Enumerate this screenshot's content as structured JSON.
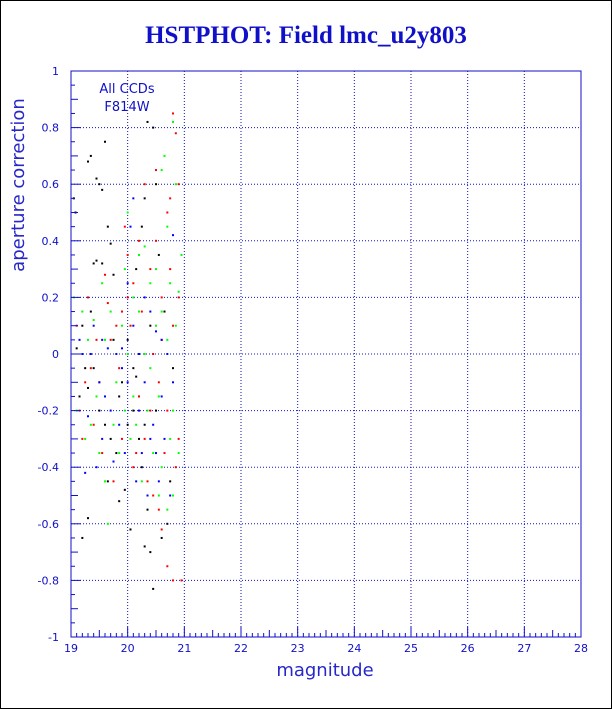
{
  "chart_data": {
    "type": "scatter",
    "title": "HSTPHOT: Field lmc_u2y803",
    "xlabel": "magnitude",
    "ylabel": "aperture correction",
    "xlim": [
      19,
      28
    ],
    "ylim": [
      -1,
      1
    ],
    "xticks": [
      19,
      20,
      21,
      22,
      23,
      24,
      25,
      26,
      27,
      28
    ],
    "yticks": [
      -1,
      -0.8,
      -0.6,
      -0.4,
      -0.2,
      0,
      0.2,
      0.4,
      0.6,
      0.8,
      1
    ],
    "ytick_labels": [
      "-1",
      "-0.8",
      "-0.6",
      "-0.4",
      "-0.2",
      "0",
      "0.2",
      "0.4",
      "0.6",
      "0.8",
      "1"
    ],
    "grid": true,
    "annotations": [
      "All CCDs",
      "F814W"
    ],
    "colors": {
      "axes": "#1010c8",
      "grid": "#1010c8"
    },
    "series": [
      {
        "color": "#000000",
        "points": [
          [
            19.05,
            0.55
          ],
          [
            19.08,
            0.5
          ],
          [
            19.3,
            0.68
          ],
          [
            19.35,
            0.7
          ],
          [
            19.45,
            0.62
          ],
          [
            19.5,
            0.6
          ],
          [
            19.55,
            0.58
          ],
          [
            19.6,
            0.75
          ],
          [
            19.65,
            0.45
          ],
          [
            19.4,
            0.32
          ],
          [
            19.45,
            0.33
          ],
          [
            19.55,
            0.32
          ],
          [
            19.7,
            0.39
          ],
          [
            19.75,
            0.28
          ],
          [
            19.35,
            0.15
          ],
          [
            19.2,
            0.1
          ],
          [
            19.1,
            0.02
          ],
          [
            19.25,
            -0.05
          ],
          [
            19.3,
            -0.12
          ],
          [
            19.5,
            -0.2
          ],
          [
            19.6,
            -0.25
          ],
          [
            19.7,
            -0.3
          ],
          [
            19.8,
            -0.35
          ],
          [
            19.9,
            -0.1
          ],
          [
            20.0,
            0.05
          ],
          [
            20.1,
            -0.05
          ],
          [
            20.2,
            -0.15
          ],
          [
            20.3,
            -0.25
          ],
          [
            20.25,
            -0.4
          ],
          [
            20.35,
            -0.55
          ],
          [
            20.4,
            -0.7
          ],
          [
            20.3,
            -0.68
          ],
          [
            20.45,
            -0.83
          ],
          [
            20.6,
            -0.65
          ],
          [
            20.7,
            -0.6
          ],
          [
            20.15,
            0.3
          ],
          [
            20.25,
            0.45
          ],
          [
            20.3,
            0.55
          ],
          [
            20.35,
            0.82
          ],
          [
            20.45,
            0.8
          ],
          [
            20.5,
            0.6
          ],
          [
            20.55,
            0.35
          ],
          [
            20.65,
            0.15
          ],
          [
            20.75,
            -0.45
          ],
          [
            20.8,
            -0.05
          ],
          [
            19.15,
            -0.15
          ],
          [
            19.4,
            -0.05
          ],
          [
            19.65,
            -0.45
          ],
          [
            19.85,
            -0.52
          ],
          [
            19.95,
            -0.48
          ],
          [
            20.05,
            -0.62
          ],
          [
            19.2,
            -0.65
          ],
          [
            19.3,
            -0.58
          ],
          [
            20.1,
            -0.2
          ],
          [
            20.2,
            -0.3
          ],
          [
            19.75,
            0.05
          ],
          [
            19.85,
            -0.15
          ],
          [
            20.0,
            -0.25
          ],
          [
            20.15,
            -0.08
          ],
          [
            20.4,
            0.1
          ],
          [
            20.5,
            -0.2
          ]
        ]
      },
      {
        "color": "#ff0000",
        "points": [
          [
            19.1,
            0.1
          ],
          [
            19.3,
            0.2
          ],
          [
            19.5,
            -0.1
          ],
          [
            19.6,
            0.28
          ],
          [
            19.7,
            0.05
          ],
          [
            19.8,
            0.1
          ],
          [
            19.9,
            0.15
          ],
          [
            20.0,
            0.35
          ],
          [
            20.1,
            0.25
          ],
          [
            20.2,
            -0.15
          ],
          [
            20.3,
            -0.3
          ],
          [
            20.4,
            -0.2
          ],
          [
            20.5,
            0.4
          ],
          [
            20.6,
            0.2
          ],
          [
            20.7,
            0.5
          ],
          [
            20.75,
            0.55
          ],
          [
            20.8,
            0.85
          ],
          [
            20.85,
            0.78
          ],
          [
            20.9,
            0.6
          ],
          [
            20.35,
            -0.45
          ],
          [
            20.45,
            -0.5
          ],
          [
            20.55,
            -0.55
          ],
          [
            20.6,
            -0.62
          ],
          [
            20.7,
            -0.75
          ],
          [
            20.8,
            -0.8
          ],
          [
            20.95,
            -0.8
          ],
          [
            19.2,
            -0.3
          ],
          [
            19.4,
            -0.25
          ],
          [
            19.55,
            -0.35
          ],
          [
            19.75,
            -0.45
          ],
          [
            19.85,
            -0.05
          ],
          [
            19.95,
            0.45
          ],
          [
            20.05,
            0.1
          ],
          [
            20.15,
            -0.35
          ],
          [
            20.25,
            0.15
          ],
          [
            20.4,
            0.3
          ],
          [
            20.55,
            -0.1
          ],
          [
            20.65,
            -0.35
          ],
          [
            20.75,
            0.3
          ],
          [
            20.85,
            -0.4
          ],
          [
            20.9,
            0.2
          ],
          [
            20.3,
            0.6
          ],
          [
            20.5,
            0.65
          ],
          [
            19.65,
            0.18
          ],
          [
            19.45,
            0.05
          ],
          [
            19.25,
            -0.1
          ],
          [
            20.1,
            -0.4
          ],
          [
            20.2,
            0.4
          ],
          [
            20.6,
            0.05
          ],
          [
            20.7,
            -0.2
          ],
          [
            20.9,
            -0.3
          ],
          [
            19.35,
            -0.05
          ],
          [
            19.9,
            -0.3
          ],
          [
            20.0,
            0.2
          ],
          [
            20.45,
            0.0
          ],
          [
            20.8,
            0.1
          ],
          [
            19.15,
            -0.2
          ]
        ]
      },
      {
        "color": "#0000ff",
        "points": [
          [
            19.2,
            0.0
          ],
          [
            19.35,
            0.0
          ],
          [
            19.5,
            -0.1
          ],
          [
            19.6,
            -0.15
          ],
          [
            19.7,
            -0.2
          ],
          [
            19.8,
            0.0
          ],
          [
            19.9,
            0.02
          ],
          [
            20.0,
            -0.1
          ],
          [
            20.1,
            0.1
          ],
          [
            20.2,
            0.0
          ],
          [
            20.3,
            0.2
          ],
          [
            20.4,
            -0.3
          ],
          [
            20.5,
            0.08
          ],
          [
            20.6,
            0.05
          ],
          [
            20.7,
            0.0
          ],
          [
            20.8,
            0.42
          ],
          [
            20.05,
            0.45
          ],
          [
            20.1,
            0.55
          ],
          [
            19.25,
            -0.42
          ],
          [
            19.45,
            -0.4
          ],
          [
            19.55,
            -0.3
          ],
          [
            19.75,
            -0.38
          ],
          [
            19.85,
            -0.25
          ],
          [
            19.95,
            -0.35
          ],
          [
            20.15,
            -0.45
          ],
          [
            20.25,
            -0.35
          ],
          [
            20.35,
            -0.5
          ],
          [
            20.45,
            -0.25
          ],
          [
            20.55,
            -0.45
          ],
          [
            20.65,
            -0.3
          ],
          [
            20.75,
            -0.5
          ],
          [
            19.4,
            0.1
          ],
          [
            19.65,
            0.02
          ],
          [
            19.3,
            -0.22
          ],
          [
            20.0,
            0.25
          ],
          [
            20.2,
            -0.2
          ],
          [
            20.4,
            0.15
          ],
          [
            20.6,
            -0.15
          ],
          [
            20.8,
            -0.1
          ],
          [
            19.15,
            0.05
          ],
          [
            19.55,
            0.05
          ],
          [
            19.9,
            -0.05
          ],
          [
            20.3,
            -0.1
          ],
          [
            20.5,
            -0.35
          ]
        ]
      },
      {
        "color": "#00ff00",
        "points": [
          [
            19.05,
            0.2
          ],
          [
            19.2,
            0.15
          ],
          [
            19.4,
            0.12
          ],
          [
            19.6,
            0.05
          ],
          [
            19.8,
            -0.1
          ],
          [
            19.95,
            0.3
          ],
          [
            20.0,
            0.5
          ],
          [
            20.1,
            0.2
          ],
          [
            20.2,
            0.15
          ],
          [
            20.3,
            0.0
          ],
          [
            20.4,
            0.25
          ],
          [
            20.5,
            0.3
          ],
          [
            20.6,
            0.65
          ],
          [
            20.65,
            0.7
          ],
          [
            20.7,
            0.45
          ],
          [
            20.75,
            0.25
          ],
          [
            20.8,
            0.82
          ],
          [
            20.85,
            0.6
          ],
          [
            20.9,
            0.22
          ],
          [
            19.1,
            -0.2
          ],
          [
            19.25,
            -0.3
          ],
          [
            19.35,
            -0.25
          ],
          [
            19.5,
            -0.35
          ],
          [
            19.6,
            -0.45
          ],
          [
            19.65,
            -0.6
          ],
          [
            19.75,
            -0.25
          ],
          [
            19.85,
            -0.35
          ],
          [
            19.95,
            -0.2
          ],
          [
            20.05,
            -0.3
          ],
          [
            20.15,
            -0.25
          ],
          [
            20.25,
            -0.45
          ],
          [
            20.35,
            -0.2
          ],
          [
            20.45,
            -0.35
          ],
          [
            20.55,
            -0.5
          ],
          [
            20.6,
            -0.4
          ],
          [
            20.7,
            -0.55
          ],
          [
            20.8,
            -0.5
          ],
          [
            20.9,
            -0.35
          ],
          [
            20.95,
            0.35
          ],
          [
            20.5,
            0.1
          ],
          [
            20.0,
            0.0
          ],
          [
            19.7,
            0.15
          ],
          [
            19.3,
            0.05
          ],
          [
            20.2,
            0.35
          ],
          [
            20.4,
            -0.05
          ],
          [
            20.6,
            0.15
          ],
          [
            20.8,
            -0.2
          ],
          [
            19.45,
            -0.15
          ],
          [
            19.9,
            0.1
          ],
          [
            20.3,
            0.38
          ],
          [
            20.7,
            0.05
          ],
          [
            20.85,
            0.1
          ],
          [
            19.55,
            0.25
          ],
          [
            20.1,
            -0.15
          ],
          [
            20.55,
            -0.15
          ],
          [
            20.75,
            -0.3
          ]
        ]
      }
    ]
  }
}
